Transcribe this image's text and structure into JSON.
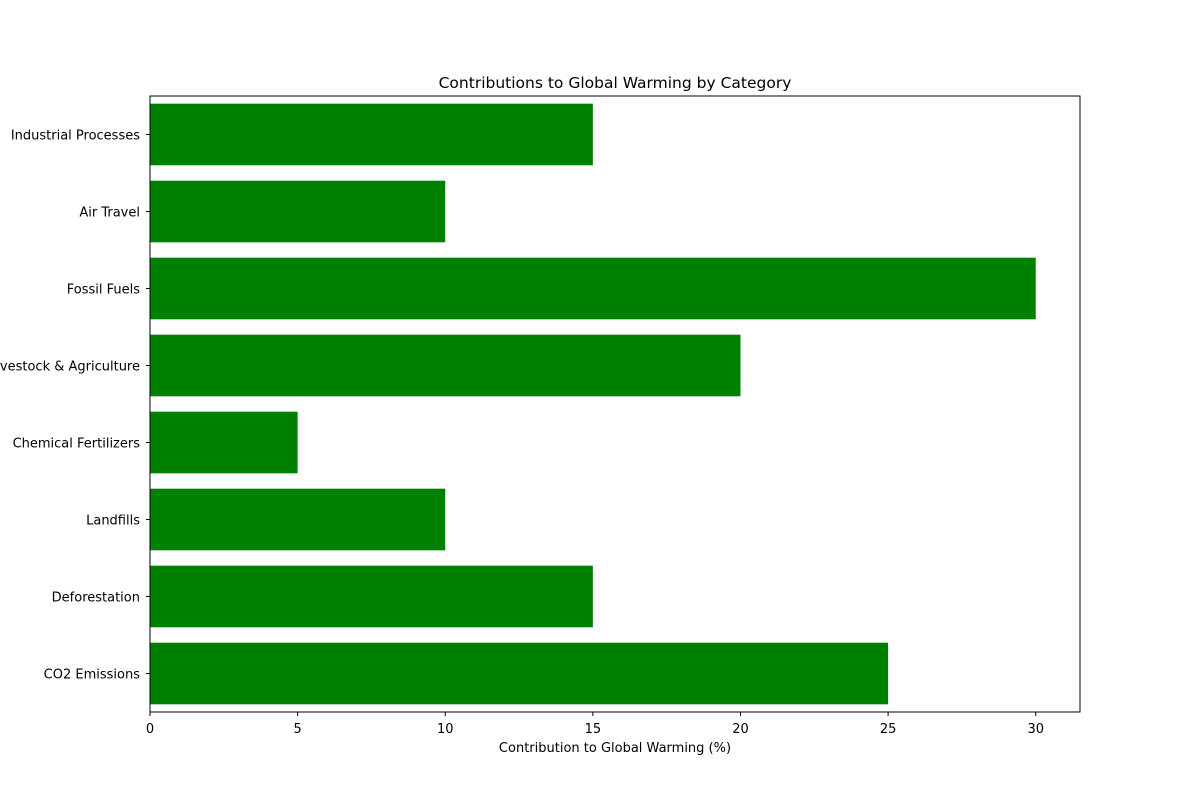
{
  "chart_data": {
    "type": "bar",
    "orientation": "horizontal",
    "title": "Contributions to Global Warming by Category",
    "xlabel": "Contribution to Global Warming (%)",
    "ylabel": "",
    "categories": [
      "CO2 Emissions",
      "Deforestation",
      "Landfills",
      "Chemical Fertilizers",
      "Livestock & Agriculture",
      "Fossil Fuels",
      "Air Travel",
      "Industrial Processes"
    ],
    "values": [
      25,
      15,
      10,
      5,
      20,
      30,
      10,
      15
    ],
    "xlim": [
      0,
      31.5
    ],
    "xticks": [
      0,
      5,
      10,
      15,
      20,
      25,
      30
    ],
    "bar_color": "#008000",
    "grid": false,
    "legend": "none"
  }
}
